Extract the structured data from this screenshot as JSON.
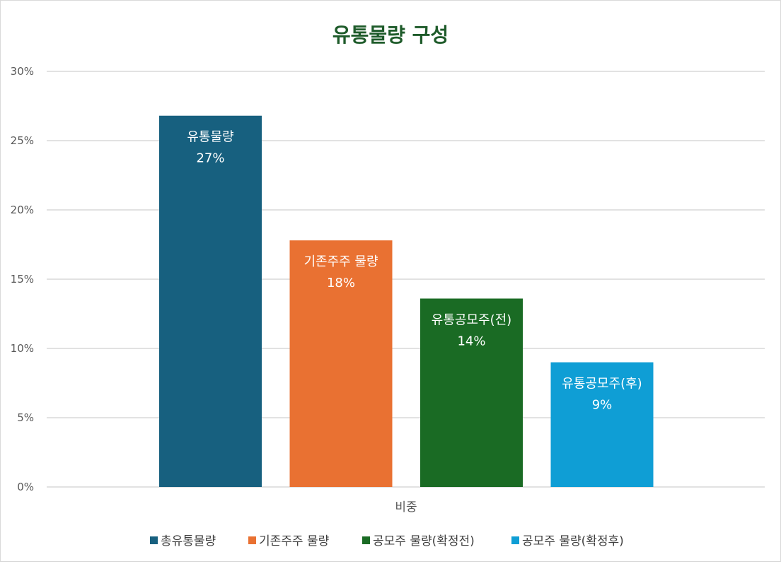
{
  "chart_data": {
    "type": "bar",
    "title": "유통물량 구성",
    "categories": [
      "비중"
    ],
    "series": [
      {
        "name": "총유통물량",
        "values": [
          0.268
        ],
        "bar_label": "유통물량",
        "value_label": "27%",
        "color": "#17607f"
      },
      {
        "name": "기존주주 물량",
        "values": [
          0.178
        ],
        "bar_label": "기존주주 물량",
        "value_label": "18%",
        "color": "#e97132"
      },
      {
        "name": "공모주 물량(확정전)",
        "values": [
          0.136
        ],
        "bar_label": "유통공모주(전)",
        "value_label": "14%",
        "color": "#1a6b24"
      },
      {
        "name": "공모주 물량(확정후)",
        "values": [
          0.09
        ],
        "bar_label": "유통공모주(후)",
        "value_label": "9%",
        "color": "#0f9ed5"
      }
    ],
    "yticks": [
      "0%",
      "5%",
      "10%",
      "15%",
      "20%",
      "25%",
      "30%"
    ],
    "ylim": [
      0,
      0.3
    ],
    "grid": true,
    "legend_position": "bottom",
    "title_color": "#1e5b2a"
  }
}
